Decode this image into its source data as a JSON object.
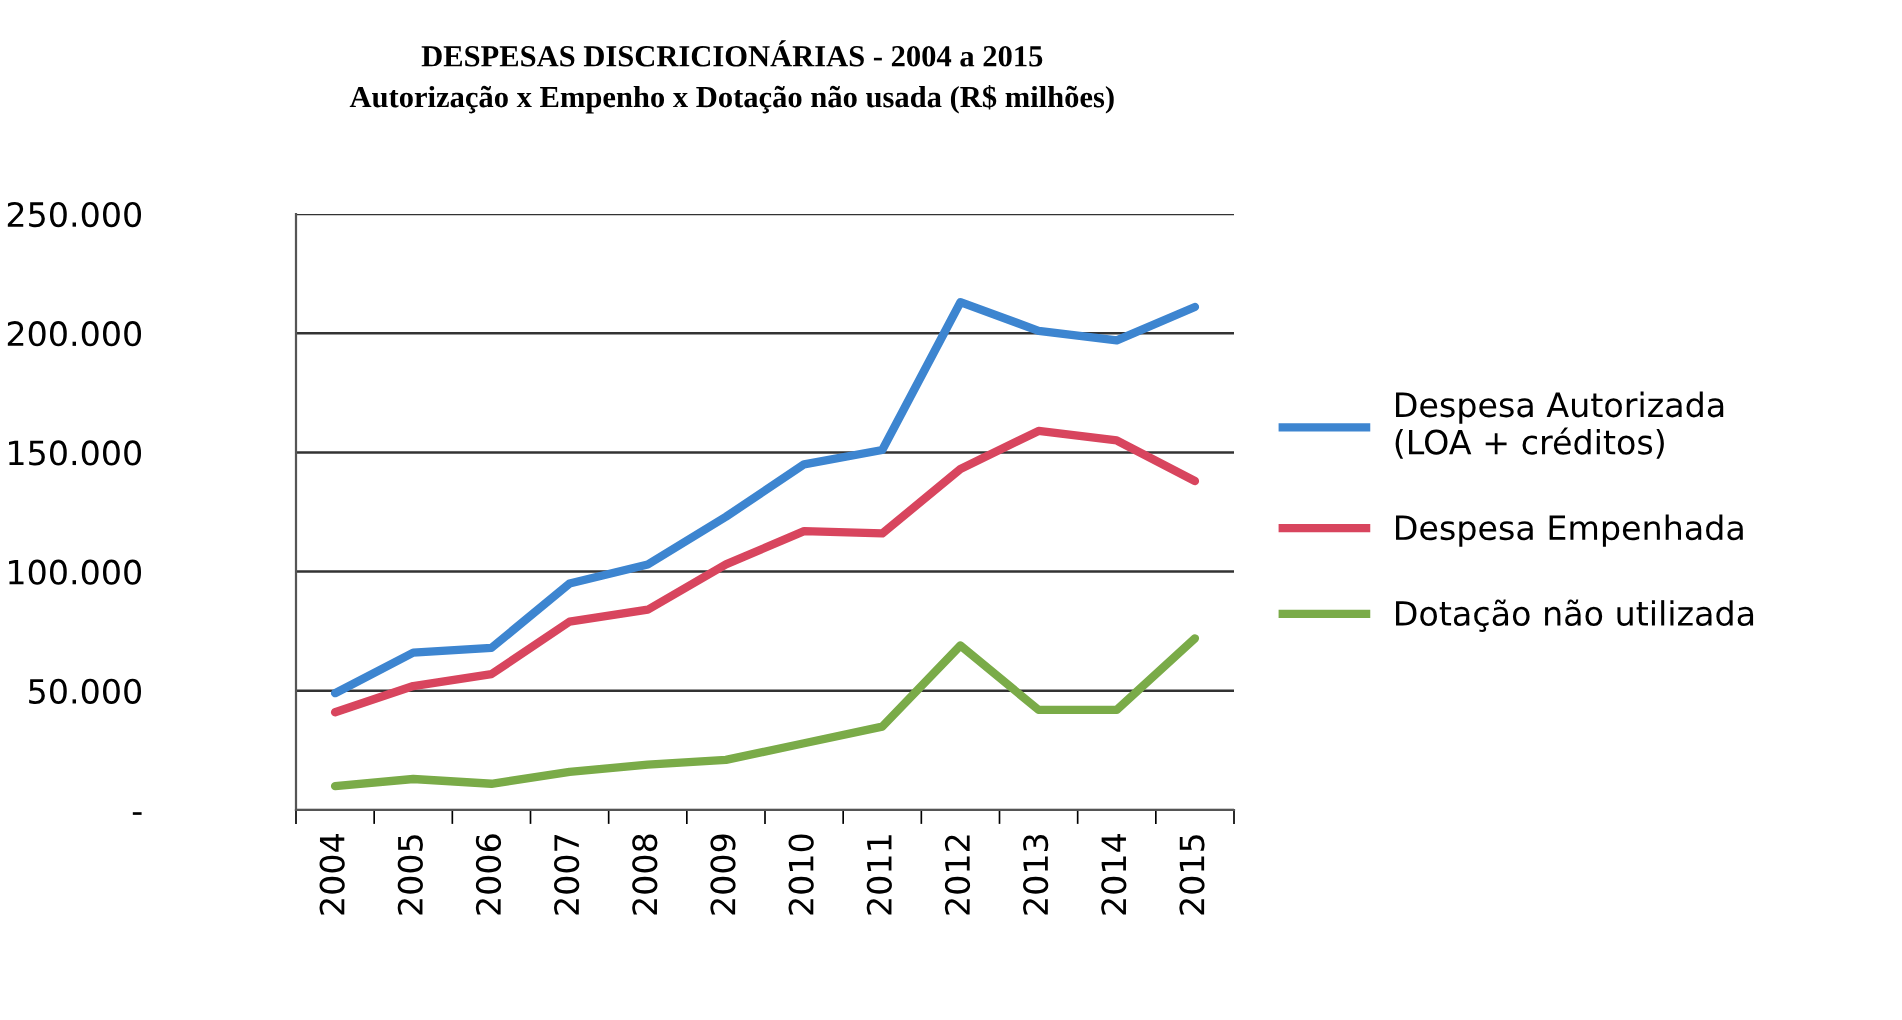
{
  "chart_data": {
    "type": "line",
    "title": "DESPESAS DISCRICIONÁRIAS - 2004 a 2015",
    "subtitle": "Autorização x Empenho x Dotação não usada (R$ milhões)",
    "categories": [
      "2004",
      "2005",
      "2006",
      "2007",
      "2008",
      "2009",
      "2010",
      "2011",
      "2012",
      "2013",
      "2014",
      "2015"
    ],
    "series": [
      {
        "name": "Despesa Autorizada\n(LOA + créditos)",
        "color": "#3d85d0",
        "values": [
          49000,
          66000,
          68000,
          95000,
          103000,
          123000,
          145000,
          151000,
          213000,
          201000,
          197000,
          211000
        ]
      },
      {
        "name": "Despesa Empenhada",
        "color": "#d8455e",
        "values": [
          41000,
          52000,
          57000,
          79000,
          84000,
          103000,
          117000,
          116000,
          143000,
          159000,
          155000,
          138000
        ]
      },
      {
        "name": "Dotação não utilizada",
        "color": "#7aab48",
        "values": [
          10000,
          13000,
          11000,
          16000,
          19000,
          21000,
          28000,
          35000,
          69000,
          42000,
          42000,
          72000
        ]
      }
    ],
    "ylim": [
      0,
      250000
    ],
    "yticks": [
      {
        "value": 0,
        "label": "-"
      },
      {
        "value": 50000,
        "label": "50.000"
      },
      {
        "value": 100000,
        "label": "100.000"
      },
      {
        "value": 150000,
        "label": "150.000"
      },
      {
        "value": 200000,
        "label": "200.000"
      },
      {
        "value": 250000,
        "label": "250.000"
      }
    ],
    "grid": "y",
    "legend": "right",
    "marker": "none",
    "line_style": "solid"
  }
}
